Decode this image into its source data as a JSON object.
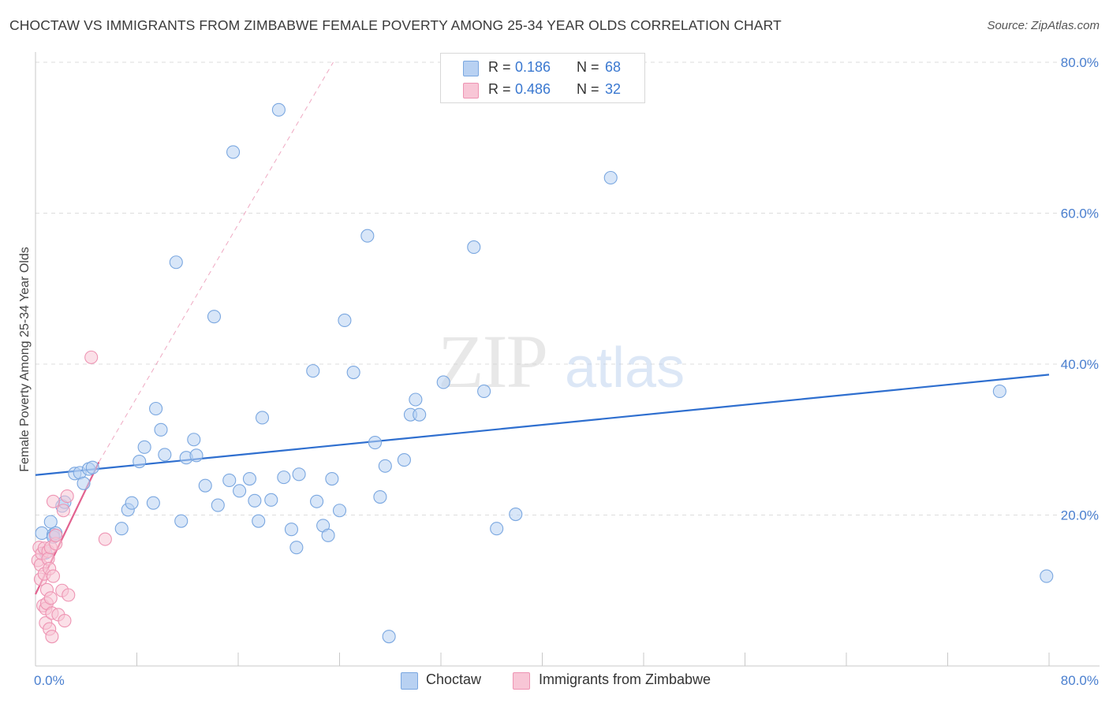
{
  "title": "CHOCTAW VS IMMIGRANTS FROM ZIMBABWE FEMALE POVERTY AMONG 25-34 YEAR OLDS CORRELATION CHART",
  "source": "Source: ZipAtlas.com",
  "watermark": {
    "zip": "ZIP",
    "atlas": "atlas"
  },
  "legend": {
    "r_label": "R =",
    "n_label": "N =",
    "series": [
      {
        "name": "Choctaw",
        "r": "0.186",
        "n": "68",
        "fill": "#b8d1f2",
        "stroke": "#7aa7e0"
      },
      {
        "name": "Immigrants from Zimbabwe",
        "r": "0.486",
        "n": "32",
        "fill": "#f8c6d6",
        "stroke": "#ee94b3"
      }
    ]
  },
  "chart_data": {
    "type": "scatter",
    "title": "CHOCTAW VS IMMIGRANTS FROM ZIMBABWE FEMALE POVERTY AMONG 25-34 YEAR OLDS CORRELATION CHART",
    "xlabel": "",
    "ylabel": "Female Poverty Among 25-34 Year Olds",
    "xlim": [
      0,
      80
    ],
    "ylim": [
      0,
      80
    ],
    "x_ticks": [
      "0.0%",
      "80.0%"
    ],
    "y_ticks": [
      "20.0%",
      "40.0%",
      "60.0%",
      "80.0%"
    ],
    "y_tick_values": [
      20,
      40,
      60,
      80
    ],
    "grid": true,
    "legend_position": "top-center",
    "series": [
      {
        "name": "Choctaw",
        "color": "#3a78d0",
        "points": [
          [
            0.5,
            17.6
          ],
          [
            0.8,
            15.0
          ],
          [
            1.2,
            19.1
          ],
          [
            1.4,
            17.4
          ],
          [
            1.4,
            17.1
          ],
          [
            2.1,
            21.2
          ],
          [
            2.3,
            21.7
          ],
          [
            3.1,
            25.5
          ],
          [
            3.5,
            25.6
          ],
          [
            3.8,
            24.2
          ],
          [
            4.2,
            26.1
          ],
          [
            4.5,
            26.3
          ],
          [
            6.8,
            18.2
          ],
          [
            7.3,
            20.7
          ],
          [
            7.6,
            21.6
          ],
          [
            8.2,
            27.1
          ],
          [
            8.6,
            29.0
          ],
          [
            9.3,
            21.6
          ],
          [
            9.5,
            34.1
          ],
          [
            9.9,
            31.3
          ],
          [
            10.2,
            28.0
          ],
          [
            11.1,
            53.5
          ],
          [
            11.5,
            19.2
          ],
          [
            11.9,
            27.6
          ],
          [
            12.5,
            30.0
          ],
          [
            12.7,
            27.9
          ],
          [
            13.4,
            23.9
          ],
          [
            14.1,
            46.3
          ],
          [
            14.4,
            21.3
          ],
          [
            15.3,
            24.6
          ],
          [
            15.6,
            68.1
          ],
          [
            16.1,
            23.2
          ],
          [
            16.9,
            24.8
          ],
          [
            17.3,
            21.9
          ],
          [
            17.6,
            19.2
          ],
          [
            17.9,
            32.9
          ],
          [
            18.6,
            22.0
          ],
          [
            19.2,
            73.7
          ],
          [
            19.6,
            25.0
          ],
          [
            20.2,
            18.1
          ],
          [
            20.6,
            15.7
          ],
          [
            20.8,
            25.4
          ],
          [
            21.9,
            39.1
          ],
          [
            22.2,
            21.8
          ],
          [
            22.7,
            18.6
          ],
          [
            23.1,
            17.3
          ],
          [
            23.4,
            24.8
          ],
          [
            24.0,
            20.6
          ],
          [
            24.4,
            45.8
          ],
          [
            25.1,
            38.9
          ],
          [
            26.2,
            57.0
          ],
          [
            26.8,
            29.6
          ],
          [
            27.2,
            22.4
          ],
          [
            27.6,
            26.5
          ],
          [
            27.9,
            3.9
          ],
          [
            29.1,
            27.3
          ],
          [
            29.6,
            33.3
          ],
          [
            30.0,
            35.3
          ],
          [
            30.3,
            33.3
          ],
          [
            32.2,
            37.6
          ],
          [
            34.6,
            55.5
          ],
          [
            35.4,
            36.4
          ],
          [
            36.4,
            18.2
          ],
          [
            37.9,
            20.1
          ],
          [
            45.4,
            64.7
          ],
          [
            76.1,
            36.4
          ],
          [
            79.8,
            11.9
          ],
          [
            1.6,
            17.6
          ]
        ]
      },
      {
        "name": "Immigrants from Zimbabwe",
        "color": "#e0588c",
        "points": [
          [
            0.2,
            14.0
          ],
          [
            0.3,
            15.7
          ],
          [
            0.4,
            13.4
          ],
          [
            0.4,
            11.5
          ],
          [
            0.5,
            14.9
          ],
          [
            0.6,
            8.0
          ],
          [
            0.7,
            15.6
          ],
          [
            0.7,
            12.2
          ],
          [
            0.8,
            7.6
          ],
          [
            0.8,
            5.7
          ],
          [
            0.9,
            10.1
          ],
          [
            0.9,
            8.3
          ],
          [
            1.0,
            15.2
          ],
          [
            1.0,
            14.2
          ],
          [
            1.1,
            12.9
          ],
          [
            1.1,
            4.9
          ],
          [
            1.2,
            9.0
          ],
          [
            1.2,
            15.7
          ],
          [
            1.3,
            3.9
          ],
          [
            1.3,
            7.0
          ],
          [
            1.4,
            21.8
          ],
          [
            1.4,
            11.9
          ],
          [
            1.6,
            16.2
          ],
          [
            1.6,
            17.3
          ],
          [
            1.8,
            6.8
          ],
          [
            2.1,
            10.0
          ],
          [
            2.2,
            20.6
          ],
          [
            2.3,
            6.0
          ],
          [
            2.5,
            22.5
          ],
          [
            2.6,
            9.4
          ],
          [
            4.4,
            40.9
          ],
          [
            5.5,
            16.8
          ]
        ]
      }
    ],
    "trendlines": [
      {
        "series": "Choctaw",
        "x": [
          0,
          80
        ],
        "y": [
          25.3,
          38.6
        ],
        "style": "solid"
      },
      {
        "series": "Immigrants from Zimbabwe",
        "x": [
          0,
          5.0
        ],
        "y": [
          9.5,
          27.0
        ],
        "style": "solid"
      },
      {
        "series": "Immigrants from Zimbabwe",
        "x": [
          5.0,
          23.5
        ],
        "y": [
          27.0,
          80.0
        ],
        "style": "dashed"
      }
    ]
  }
}
